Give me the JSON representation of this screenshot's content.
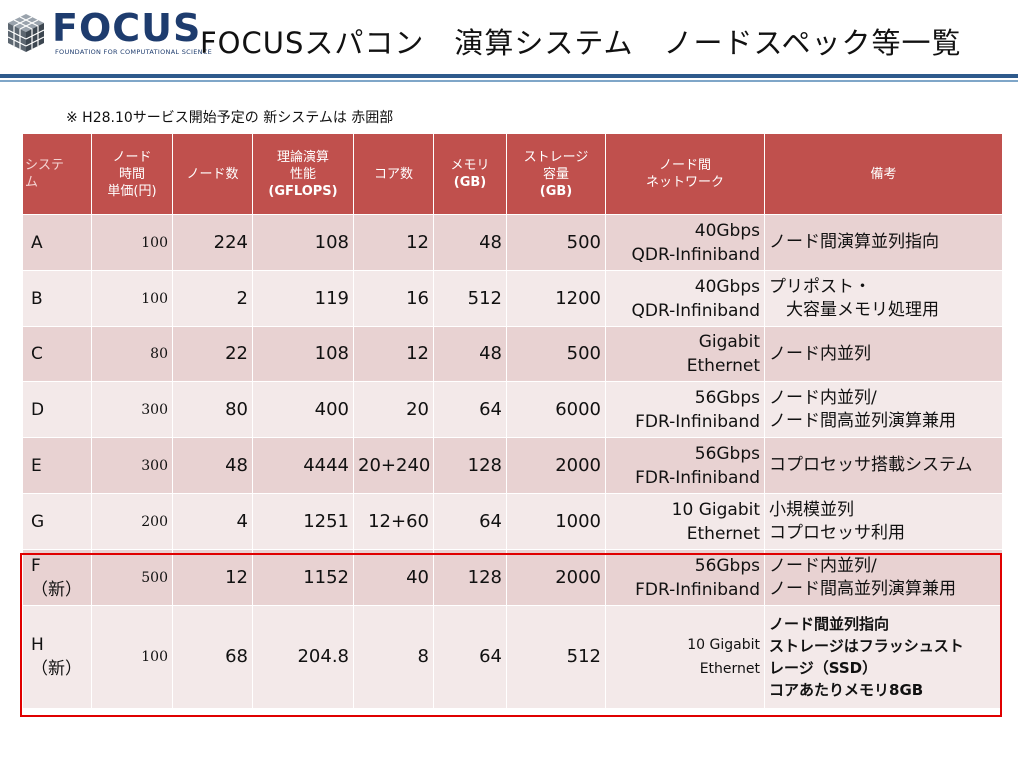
{
  "logo": {
    "name": "FOCUS",
    "subtitle": "FOUNDATION FOR COMPUTATIONAL SCIENCE"
  },
  "title": "FOCUSスパコン　演算システム　ノードスペック等一覧",
  "note": "※ H28.10サービス開始予定の 新システムは 赤囲部",
  "table": {
    "headers": [
      {
        "lines": [
          "システ",
          "ム"
        ]
      },
      {
        "lines": [
          "ノード",
          "時間",
          "単価(円)"
        ]
      },
      {
        "lines": [
          "ノード数"
        ]
      },
      {
        "lines": [
          "理論演算",
          "性能",
          "(GFLOPS)"
        ]
      },
      {
        "lines": [
          "コア数"
        ]
      },
      {
        "lines": [
          "メモリ",
          "(GB)"
        ]
      },
      {
        "lines": [
          "ストレージ",
          "容量",
          "(GB)"
        ]
      },
      {
        "lines": [
          "ノード間",
          "ネットワーク"
        ]
      },
      {
        "lines": [
          "備考"
        ]
      }
    ],
    "rows": [
      {
        "system": [
          "A"
        ],
        "price": "100",
        "nodes": "224",
        "gflops": "108",
        "cores": "12",
        "memory": "48",
        "storage": "500",
        "network": [
          "40Gbps",
          "QDR-Infiniband"
        ],
        "remarks": [
          "ノード間演算並列指向"
        ]
      },
      {
        "system": [
          "B"
        ],
        "price": "100",
        "nodes": "2",
        "gflops": "119",
        "cores": "16",
        "memory": "512",
        "storage": "1200",
        "network": [
          "40Gbps",
          "QDR-Infiniband"
        ],
        "remarks": [
          "プリポスト・",
          "　大容量メモリ処理用"
        ]
      },
      {
        "system": [
          "C"
        ],
        "price": "80",
        "nodes": "22",
        "gflops": "108",
        "cores": "12",
        "memory": "48",
        "storage": "500",
        "network": [
          "Gigabit",
          "Ethernet"
        ],
        "remarks": [
          "ノード内並列"
        ]
      },
      {
        "system": [
          "D"
        ],
        "price": "300",
        "nodes": "80",
        "gflops": "400",
        "cores": "20",
        "memory": "64",
        "storage": "6000",
        "network": [
          "56Gbps",
          "FDR-Infiniband"
        ],
        "remarks": [
          "ノード内並列/",
          "ノード間高並列演算兼用"
        ]
      },
      {
        "system": [
          "E"
        ],
        "price": "300",
        "nodes": "48",
        "gflops": "4444",
        "cores": "20+240",
        "memory": "128",
        "storage": "2000",
        "network": [
          "56Gbps",
          "FDR-Infiniband"
        ],
        "remarks": [
          "コプロセッサ搭載システム"
        ]
      },
      {
        "system": [
          "G"
        ],
        "price": "200",
        "nodes": "4",
        "gflops": "1251",
        "cores": "12+60",
        "memory": "64",
        "storage": "1000",
        "network": [
          "10 Gigabit",
          "Ethernet"
        ],
        "remarks": [
          "小規模並列",
          "コプロセッサ利用"
        ]
      },
      {
        "system": [
          "F",
          "（新）"
        ],
        "price": "500",
        "nodes": "12",
        "gflops": "1152",
        "cores": "40",
        "memory": "128",
        "storage": "2000",
        "network": [
          "56Gbps",
          "FDR-Infiniband"
        ],
        "remarks": [
          "ノード内並列/",
          "ノード間高並列演算兼用"
        ]
      },
      {
        "system": [
          "H",
          "（新）"
        ],
        "price": "100",
        "nodes": "68",
        "gflops": "204.8",
        "cores": "8",
        "memory": "64",
        "storage": "512",
        "network": [
          "10 Gigabit",
          "Ethernet"
        ],
        "remarks": [
          "ノード間並列指向",
          "ストレージはフラッシュスト",
          "レージ（SSD）",
          "コアあたりメモリ8GB"
        ]
      }
    ]
  },
  "colors": {
    "header_bg": "#c0504d",
    "row_odd": "#e8d2d2",
    "row_even": "#f3e9e9",
    "highlight_border": "#e00000",
    "brand_blue": "#1e3c6e"
  }
}
